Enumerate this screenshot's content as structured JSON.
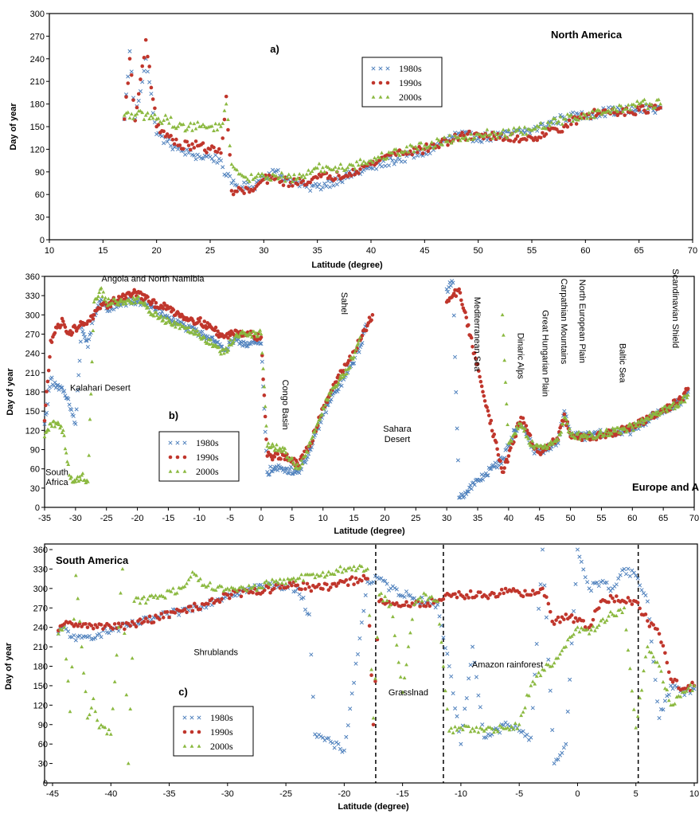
{
  "colors": {
    "s1980": "#4f81bd",
    "s1990": "#c0362c",
    "s2000": "#8bb940",
    "frame": "#000000"
  },
  "chart_data": [
    {
      "id": "a",
      "type": "scatter",
      "panel_label": "a)",
      "region": "North America",
      "xlabel": "Latitude (degree)",
      "ylabel": "Day of year",
      "xlim": [
        10,
        70
      ],
      "ylim": [
        0,
        300
      ],
      "xticks": [
        10,
        15,
        20,
        25,
        30,
        35,
        40,
        45,
        50,
        55,
        60,
        65,
        70
      ],
      "yticks": [
        0,
        30,
        60,
        90,
        120,
        150,
        180,
        210,
        240,
        270,
        300
      ],
      "legend": [
        "1980s",
        "1990s",
        "2000s"
      ],
      "annotations": [],
      "series": [
        {
          "name": "1980s",
          "marker": "x",
          "x": [
            17,
            17.5,
            18,
            19,
            20,
            21,
            22,
            23,
            24,
            25,
            26,
            26.5,
            27,
            28,
            29,
            30,
            31,
            33,
            34,
            35,
            37,
            40,
            42,
            45,
            48,
            50,
            52,
            55,
            58,
            60,
            62,
            65,
            67
          ],
          "y": [
            160,
            250,
            160,
            240,
            140,
            130,
            120,
            115,
            110,
            110,
            105,
            85,
            75,
            70,
            70,
            85,
            90,
            75,
            70,
            70,
            80,
            95,
            105,
            115,
            140,
            135,
            138,
            145,
            162,
            165,
            170,
            172,
            175
          ]
        },
        {
          "name": "1990s",
          "marker": "dot",
          "x": [
            17,
            17.5,
            18,
            19,
            20,
            21,
            22,
            23,
            24,
            25,
            26,
            26.5,
            27,
            28,
            29,
            30,
            31,
            33,
            35,
            37,
            40,
            42,
            45,
            48,
            50,
            52,
            55,
            58,
            60,
            62,
            65,
            67
          ],
          "y": [
            160,
            240,
            158,
            265,
            150,
            140,
            125,
            125,
            125,
            120,
            115,
            190,
            65,
            65,
            65,
            80,
            80,
            75,
            82,
            85,
            100,
            115,
            120,
            135,
            140,
            135,
            135,
            150,
            165,
            170,
            172,
            175
          ]
        },
        {
          "name": "2000s",
          "marker": "triangle",
          "x": [
            17,
            18,
            19,
            20,
            21,
            22,
            23,
            24,
            25,
            26,
            26.5,
            27,
            28,
            29,
            30,
            31,
            33,
            35,
            37,
            40,
            42,
            45,
            48,
            50,
            52,
            55,
            58,
            60,
            62,
            65,
            67
          ],
          "y": [
            165,
            165,
            165,
            160,
            160,
            150,
            150,
            150,
            150,
            150,
            180,
            100,
            85,
            80,
            85,
            85,
            80,
            95,
            95,
            105,
            115,
            125,
            135,
            140,
            140,
            145,
            160,
            165,
            170,
            180,
            180
          ]
        }
      ]
    },
    {
      "id": "b",
      "type": "scatter",
      "panel_label": "b)",
      "region": "Europe and Africa",
      "xlabel": "Latitude (degree)",
      "ylabel": "Day of year",
      "xlim": [
        -35,
        70
      ],
      "ylim": [
        0,
        360
      ],
      "xticks": [
        -35,
        -30,
        -25,
        -20,
        -15,
        -10,
        -5,
        0,
        5,
        10,
        15,
        20,
        25,
        30,
        35,
        40,
        45,
        50,
        55,
        60,
        65,
        70
      ],
      "yticks": [
        0,
        30,
        60,
        90,
        120,
        150,
        180,
        210,
        240,
        270,
        300,
        330,
        360
      ],
      "legend": [
        "1980s",
        "1990s",
        "2000s"
      ],
      "annotations": [
        {
          "text": "Angola and North Namibia",
          "x": -17.5,
          "y": 352,
          "rotate": false
        },
        {
          "text": "Kalahari Desert",
          "x": -26,
          "y": 182,
          "rotate": false
        },
        {
          "text": "South",
          "x": -33,
          "y": 50,
          "rotate": false
        },
        {
          "text": "Africa",
          "x": -33,
          "y": 35,
          "rotate": false
        },
        {
          "text": "Sahel",
          "x": 13,
          "y": 318,
          "rotate": true
        },
        {
          "text": "Congo Basin",
          "x": 3.5,
          "y": 160,
          "rotate": true
        },
        {
          "text": "Sahara",
          "x": 22,
          "y": 118,
          "rotate": false
        },
        {
          "text": "Desert",
          "x": 22,
          "y": 102,
          "rotate": false
        },
        {
          "text": "Mediterranean Sea",
          "x": 34.5,
          "y": 270,
          "rotate": true
        },
        {
          "text": "Dinaric Alps",
          "x": 41.5,
          "y": 236,
          "rotate": true
        },
        {
          "text": "Great Hungarian Plain",
          "x": 45.5,
          "y": 240,
          "rotate": true
        },
        {
          "text": "Carpathian Mountains",
          "x": 48.5,
          "y": 290,
          "rotate": true
        },
        {
          "text": "North European Plain",
          "x": 51.5,
          "y": 290,
          "rotate": true
        },
        {
          "text": "Baltic Sea",
          "x": 58,
          "y": 225,
          "rotate": true
        },
        {
          "text": "Scandinavian Shield",
          "x": 66.5,
          "y": 310,
          "rotate": true
        }
      ],
      "series": [
        {
          "name": "1980s",
          "marker": "x",
          "x": [
            -35,
            -34,
            -33,
            -32,
            -31,
            -30,
            -29,
            -28,
            -27,
            -26,
            -25,
            -22,
            -20,
            -18,
            -15,
            -12,
            -10,
            -8,
            -6,
            -4,
            -2,
            0,
            1,
            2,
            4,
            6,
            8,
            10,
            12,
            14,
            16,
            17,
            30,
            31,
            32,
            39,
            40,
            41,
            42,
            43,
            44,
            45,
            46,
            47,
            48,
            49,
            50,
            52,
            55,
            60,
            63,
            65,
            68,
            69
          ],
          "y": [
            130,
            200,
            190,
            180,
            160,
            130,
            280,
            250,
            300,
            320,
            310,
            320,
            320,
            315,
            295,
            280,
            270,
            265,
            245,
            260,
            255,
            255,
            55,
            60,
            60,
            55,
            90,
            145,
            180,
            210,
            250,
            285,
            340,
            350,
            15,
            75,
            95,
            120,
            130,
            115,
            90,
            90,
            90,
            95,
            100,
            150,
            115,
            110,
            115,
            120,
            140,
            150,
            165,
            180
          ]
        },
        {
          "name": "1990s",
          "marker": "dot",
          "x": [
            -35,
            -34,
            -33,
            -32,
            -31,
            -30,
            -29,
            -28,
            -27,
            -26,
            -25,
            -22,
            -20,
            -18,
            -15,
            -12,
            -10,
            -8,
            -6,
            -4,
            -2,
            0,
            1,
            2,
            4,
            6,
            8,
            10,
            12,
            14,
            16,
            18,
            30,
            31,
            32,
            39,
            40,
            41,
            42,
            43,
            44,
            45,
            46,
            47,
            48,
            49,
            50,
            52,
            55,
            60,
            63,
            65,
            68,
            69
          ],
          "y": [
            135,
            260,
            280,
            290,
            270,
            280,
            285,
            290,
            300,
            310,
            315,
            330,
            335,
            320,
            310,
            295,
            290,
            280,
            265,
            275,
            270,
            265,
            80,
            80,
            80,
            65,
            100,
            155,
            195,
            225,
            260,
            300,
            320,
            330,
            340,
            55,
            80,
            110,
            140,
            120,
            95,
            85,
            90,
            100,
            105,
            145,
            110,
            110,
            112,
            125,
            140,
            150,
            170,
            185
          ]
        },
        {
          "name": "2000s",
          "marker": "triangle",
          "x": [
            -35,
            -34,
            -33,
            -32,
            -31,
            -30,
            -29,
            -28,
            -27,
            -26,
            -25,
            -22,
            -20,
            -18,
            -15,
            -12,
            -10,
            -8,
            -6,
            -4,
            -2,
            0,
            1,
            2,
            4,
            6,
            8,
            10,
            12,
            14,
            16,
            39,
            40,
            41,
            42,
            43,
            44,
            45,
            46,
            47,
            48,
            49,
            50,
            52,
            55,
            60,
            63,
            65,
            68,
            69
          ],
          "y": [
            110,
            130,
            130,
            120,
            50,
            40,
            50,
            40,
            320,
            340,
            320,
            320,
            325,
            305,
            290,
            280,
            270,
            255,
            240,
            270,
            270,
            270,
            95,
            95,
            85,
            60,
            100,
            155,
            190,
            215,
            265,
            300,
            100,
            115,
            130,
            110,
            95,
            95,
            95,
            100,
            105,
            140,
            115,
            110,
            115,
            125,
            140,
            150,
            165,
            175
          ]
        }
      ]
    },
    {
      "id": "c",
      "type": "scatter",
      "panel_label": "c)",
      "region": "South America",
      "xlabel": "Latitude (degree)",
      "ylabel": "Day of year",
      "xlim": [
        -45,
        10
      ],
      "ylim": [
        0,
        360
      ],
      "xticks": [
        -45,
        -40,
        -35,
        -30,
        -25,
        -20,
        -15,
        -10,
        -5,
        0,
        5,
        10
      ],
      "yticks": [
        0,
        30,
        60,
        90,
        120,
        150,
        180,
        210,
        240,
        270,
        300,
        330,
        360
      ],
      "legend": [
        "1980s",
        "1990s",
        "2000s"
      ],
      "dividers_x": [
        -17.3,
        -11.5,
        5.2
      ],
      "annotations": [
        {
          "text": "Shrublands",
          "x": -31,
          "y": 197,
          "rotate": false
        },
        {
          "text": "Grasslnad",
          "x": -14.5,
          "y": 135,
          "rotate": false
        },
        {
          "text": "Amazon rainforest",
          "x": -6,
          "y": 178,
          "rotate": false
        }
      ],
      "series": [
        {
          "name": "1980s",
          "marker": "x",
          "x": [
            -44.5,
            -44,
            -43,
            -42,
            -41,
            -40,
            -38,
            -36,
            -34,
            -32,
            -30,
            -28,
            -26,
            -24,
            -23,
            -22.5,
            -20,
            -18,
            -17,
            -16,
            -14,
            -12,
            -11,
            -10,
            -9,
            -8,
            -6,
            -4,
            -3,
            -2,
            -1,
            0,
            1,
            2,
            3,
            4,
            5,
            6,
            7,
            8,
            9,
            10
          ],
          "y": [
            230,
            240,
            220,
            225,
            230,
            235,
            245,
            255,
            265,
            275,
            290,
            300,
            305,
            300,
            260,
            75,
            50,
            310,
            315,
            300,
            285,
            275,
            180,
            60,
            210,
            70,
            90,
            70,
            360,
            30,
            60,
            360,
            300,
            310,
            300,
            330,
            320,
            280,
            100,
            150,
            140,
            145
          ]
        },
        {
          "name": "1990s",
          "marker": "dot",
          "x": [
            -44.5,
            -44,
            -43,
            -42,
            -41,
            -40,
            -38,
            -36,
            -34,
            -32,
            -30,
            -28,
            -26,
            -24,
            -22,
            -20,
            -18,
            -17.5,
            -17,
            -16,
            -14,
            -12,
            -11,
            -10,
            -8,
            -6,
            -4,
            -3,
            -2,
            -1,
            0,
            1,
            2,
            3,
            4,
            5,
            6,
            7,
            8,
            9,
            10
          ],
          "y": [
            235,
            245,
            245,
            240,
            245,
            240,
            245,
            255,
            265,
            275,
            290,
            295,
            300,
            305,
            300,
            310,
            315,
            90,
            280,
            275,
            275,
            280,
            290,
            290,
            290,
            295,
            290,
            300,
            245,
            260,
            250,
            240,
            280,
            285,
            280,
            280,
            250,
            230,
            160,
            145,
            150
          ]
        },
        {
          "name": "2000s",
          "marker": "triangle",
          "x": [
            -44.5,
            -44,
            -43.5,
            -43,
            -42,
            -41.5,
            -41,
            -40,
            -39,
            -38.5,
            -38,
            -36,
            -34,
            -33,
            -32,
            -30,
            -28,
            -26,
            -24,
            -22,
            -20,
            -18,
            -17.5,
            -17,
            -16,
            -15,
            -14,
            -13,
            -12,
            -11,
            -10,
            -8,
            -6,
            -5,
            -4,
            -3,
            -2,
            -1,
            0,
            1,
            2,
            3,
            4,
            5,
            6,
            7,
            8,
            9,
            10
          ],
          "y": [
            230,
            240,
            110,
            320,
            100,
            130,
            85,
            75,
            330,
            30,
            280,
            285,
            300,
            325,
            305,
            300,
            300,
            310,
            315,
            320,
            330,
            330,
            100,
            290,
            275,
            140,
            275,
            290,
            280,
            80,
            85,
            80,
            85,
            90,
            150,
            175,
            185,
            210,
            240,
            230,
            250,
            260,
            270,
            85,
            210,
            180,
            120,
            140,
            150
          ]
        }
      ]
    }
  ]
}
